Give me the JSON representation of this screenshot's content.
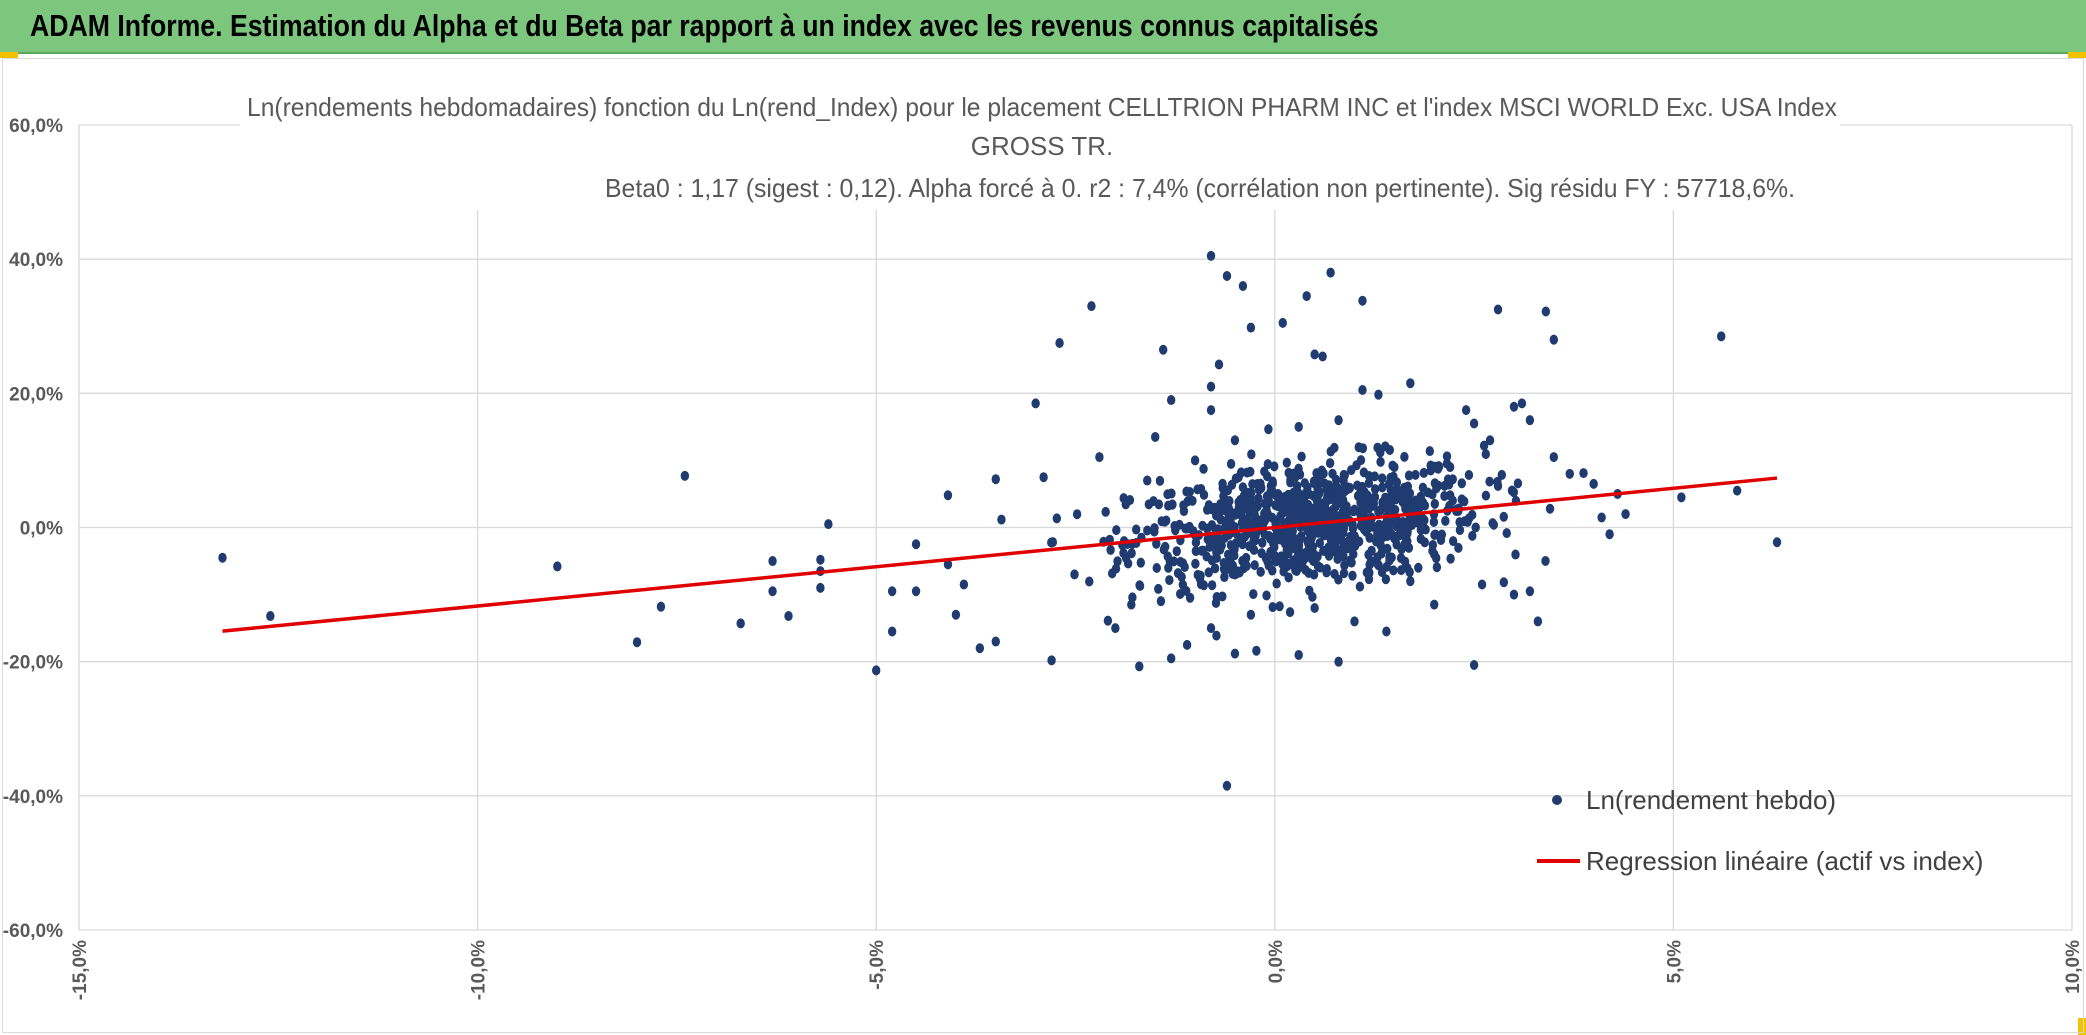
{
  "header": {
    "title": "ADAM Informe. Estimation du Alpha et du Beta par rapport à un index avec les revenus connus capitalisés"
  },
  "colors": {
    "header_bg": "#7dc67e",
    "accent_corner": "#f2c200",
    "points": "#1f3b70",
    "regression": "#e00000",
    "grid": "#d9d9d9",
    "text": "#595959"
  },
  "chart_data": {
    "type": "scatter",
    "title_lines": [
      "Ln(rendements hebdomadaires) fonction du Ln(rend_Index) pour le placement CELLTRION PHARM INC et l'index MSCI WORLD Exc. USA Index",
      "GROSS TR.",
      "Beta0 : 1,17 (sigest : 0,12). Alpha forcé à 0. r2 : 7,4% (corrélation non pertinente). Sig résidu FY : 57718,6%."
    ],
    "xlim": [
      -0.15,
      0.1
    ],
    "ylim": [
      -0.6,
      0.6
    ],
    "x_ticks": [
      -0.15,
      -0.1,
      -0.05,
      0.0,
      0.05,
      0.1
    ],
    "x_tick_labels": [
      "-15,0%",
      "-10,0%",
      "-5,0%",
      "0,0%",
      "5,0%",
      "10,0%"
    ],
    "y_ticks": [
      0.6,
      0.4,
      0.2,
      0.0,
      -0.2,
      -0.4,
      -0.6
    ],
    "y_tick_labels": [
      "60,0%",
      "40,0%",
      "20,0%",
      "0,0%",
      "-20,0%",
      "-40,0%",
      "-60,0%"
    ],
    "grid": true,
    "legend_position": "bottom-right",
    "series": [
      {
        "name": "Ln(rendement hebdo)",
        "kind": "scatter",
        "points": [
          [
            -0.132,
            -0.045
          ],
          [
            -0.126,
            -0.132
          ],
          [
            -0.09,
            -0.058
          ],
          [
            -0.074,
            0.077
          ],
          [
            -0.077,
            -0.118
          ],
          [
            -0.08,
            -0.171
          ],
          [
            -0.067,
            -0.143
          ],
          [
            -0.063,
            -0.05
          ],
          [
            -0.063,
            -0.095
          ],
          [
            -0.061,
            -0.132
          ],
          [
            -0.057,
            -0.048
          ],
          [
            -0.057,
            -0.065
          ],
          [
            -0.057,
            -0.09
          ],
          [
            -0.056,
            0.005
          ],
          [
            -0.05,
            -0.213
          ],
          [
            -0.048,
            -0.095
          ],
          [
            -0.048,
            -0.155
          ],
          [
            -0.045,
            -0.095
          ],
          [
            -0.045,
            -0.025
          ],
          [
            -0.041,
            0.048
          ],
          [
            -0.041,
            -0.055
          ],
          [
            -0.04,
            -0.13
          ],
          [
            -0.039,
            -0.085
          ],
          [
            -0.037,
            -0.18
          ],
          [
            -0.035,
            -0.17
          ],
          [
            -0.035,
            0.072
          ],
          [
            -0.03,
            0.185
          ],
          [
            -0.029,
            0.075
          ],
          [
            -0.028,
            -0.198
          ],
          [
            -0.027,
            0.275
          ],
          [
            -0.023,
            0.33
          ],
          [
            -0.022,
            0.105
          ],
          [
            -0.02,
            -0.15
          ],
          [
            -0.018,
            -0.115
          ],
          [
            -0.017,
            -0.207
          ],
          [
            -0.016,
            0.07
          ],
          [
            -0.015,
            0.135
          ],
          [
            -0.014,
            0.265
          ],
          [
            -0.013,
            0.19
          ],
          [
            -0.013,
            -0.195
          ],
          [
            -0.01,
            0.1
          ],
          [
            -0.008,
            0.175
          ],
          [
            -0.007,
            0.243
          ],
          [
            -0.005,
            -0.07
          ],
          [
            -0.005,
            0.13
          ],
          [
            -0.004,
            0.06
          ],
          [
            -0.003,
            -0.13
          ],
          [
            -0.001,
            0.02
          ],
          [
            -0.008,
            -0.15
          ],
          [
            -0.011,
            -0.175
          ],
          [
            -0.008,
            0.405
          ],
          [
            -0.006,
            0.375
          ],
          [
            -0.004,
            0.36
          ],
          [
            -0.003,
            0.298
          ],
          [
            -0.008,
            0.21
          ],
          [
            -0.006,
            -0.385
          ],
          [
            -0.005,
            -0.188
          ],
          [
            0.001,
            0.305
          ],
          [
            0.003,
            0.15
          ],
          [
            0.004,
            0.345
          ],
          [
            0.005,
            0.258
          ],
          [
            0.006,
            0.255
          ],
          [
            0.007,
            0.38
          ],
          [
            0.008,
            0.16
          ],
          [
            0.011,
            0.338
          ],
          [
            0.011,
            0.205
          ],
          [
            0.013,
            0.198
          ],
          [
            0.017,
            0.215
          ],
          [
            0.003,
            -0.19
          ],
          [
            0.005,
            -0.12
          ],
          [
            0.008,
            -0.2
          ],
          [
            0.01,
            -0.14
          ],
          [
            0.014,
            -0.155
          ],
          [
            0.017,
            -0.08
          ],
          [
            0.02,
            -0.115
          ],
          [
            0.024,
            0.175
          ],
          [
            0.025,
            0.155
          ],
          [
            0.025,
            -0.205
          ],
          [
            0.026,
            -0.085
          ],
          [
            0.027,
            0.13
          ],
          [
            0.028,
            0.325
          ],
          [
            0.03,
            0.18
          ],
          [
            0.031,
            0.185
          ],
          [
            0.032,
            0.16
          ],
          [
            0.032,
            -0.095
          ],
          [
            0.034,
            0.322
          ],
          [
            0.035,
            0.28
          ],
          [
            0.035,
            0.105
          ],
          [
            0.04,
            0.065
          ],
          [
            0.041,
            0.015
          ],
          [
            0.042,
            -0.01
          ],
          [
            0.043,
            0.05
          ],
          [
            0.044,
            0.02
          ],
          [
            0.051,
            0.045
          ],
          [
            0.056,
            0.285
          ],
          [
            0.058,
            0.055
          ],
          [
            0.063,
            -0.022
          ],
          [
            0.037,
            0.08
          ],
          [
            0.033,
            -0.14
          ],
          [
            0.03,
            -0.1
          ],
          [
            0.028,
            0.062
          ],
          [
            0.022,
            0.048
          ],
          [
            0.02,
            -0.04
          ],
          [
            0.018,
            -0.06
          ],
          [
            0.015,
            0.09
          ]
        ]
      },
      {
        "name": "Regression linéaire (actif vs index)",
        "kind": "line",
        "points": [
          [
            -0.132,
            -0.1545
          ],
          [
            0.063,
            0.0737
          ]
        ]
      }
    ]
  }
}
